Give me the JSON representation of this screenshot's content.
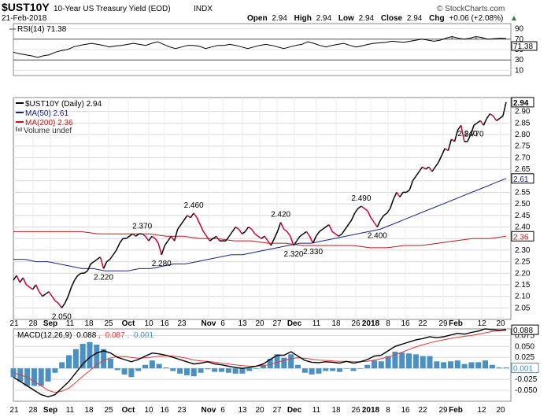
{
  "header": {
    "symbol": "$UST10Y",
    "name": "10-Year US Treasury Yield (EOD)",
    "exchange": "INDX",
    "date": "21-Feb-2018",
    "open_label": "Open",
    "open": "2.94",
    "high_label": "High",
    "high": "2.94",
    "low_label": "Low",
    "low": "2.94",
    "close_label": "Close",
    "close": "2.94",
    "chg_label": "Chg",
    "chg": "+0.06 (+2.08%)",
    "brand": "© StockCharts.com",
    "trend_marker": "▲"
  },
  "colors": {
    "price": "#000000",
    "ma50": "#1a237e",
    "ma200": "#b71c1c",
    "rise": "#cc0033",
    "hist": "#4a90c2",
    "rsi_fill": "#4a7a4a",
    "macd_signal": "#e53935",
    "grid": "#d8d8d8"
  },
  "chart_data": [
    {
      "type": "line",
      "panel": "rsi",
      "legend": "RSI(14) 71.38",
      "current": "71.38",
      "y_ticks": [
        "90",
        "70",
        "50",
        "30",
        "10"
      ],
      "ylim": [
        0,
        100
      ],
      "reference_lines": [
        70,
        30
      ],
      "values": [
        45,
        42,
        40,
        38,
        35,
        38,
        40,
        45,
        48,
        50,
        55,
        58,
        60,
        62,
        60,
        58,
        55,
        57,
        58,
        60,
        62,
        60,
        58,
        62,
        65,
        60,
        55,
        52,
        55,
        58,
        58,
        56,
        52,
        55,
        58,
        58,
        60,
        58,
        55,
        52,
        55,
        58,
        60,
        58,
        55,
        52,
        55,
        58,
        60,
        65,
        62,
        58,
        55,
        58,
        60,
        62,
        58,
        55,
        57,
        60,
        62,
        63,
        64,
        66,
        65,
        64,
        66,
        68,
        70,
        68,
        66,
        68,
        72,
        75,
        72,
        70,
        72,
        75,
        73,
        70,
        71,
        72,
        71.38
      ]
    },
    {
      "type": "line",
      "panel": "price",
      "title": "$UST10Y (Daily) 2.94",
      "legend": [
        "$UST10Y (Daily) 2.94",
        "MA(50) 2.61",
        "MA(200) 2.36",
        "Volume undef"
      ],
      "ylim": [
        2.0,
        2.96
      ],
      "y_ticks": [
        "2.90",
        "2.85",
        "2.80",
        "2.75",
        "2.70",
        "2.65",
        "2.60",
        "2.55",
        "2.50",
        "2.45",
        "2.40",
        "2.35",
        "2.30",
        "2.25",
        "2.20",
        "2.15",
        "2.10",
        "2.05"
      ],
      "last_labels": {
        "price": "2.94",
        "ma50": "2.61",
        "ma200": "2.36"
      },
      "x_ticks": [
        "21",
        "28",
        "Sep",
        "11",
        "18",
        "25",
        "Oct",
        "10",
        "16",
        "23",
        "Nov",
        "6",
        "13",
        "20",
        "27",
        "Dec",
        "11",
        "18",
        "26",
        "2018",
        "8",
        "16",
        "22",
        "29",
        "Feb",
        "12",
        "20"
      ],
      "annotations": [
        {
          "value": "2.050",
          "i": 15
        },
        {
          "value": "2.220",
          "i": 28
        },
        {
          "value": "2.370",
          "i": 40
        },
        {
          "value": "2.280",
          "i": 46
        },
        {
          "value": "2.460",
          "i": 56
        },
        {
          "value": "2.420",
          "i": 83
        },
        {
          "value": "2.320",
          "i": 87
        },
        {
          "value": "2.330",
          "i": 93
        },
        {
          "value": "2.490",
          "i": 108
        },
        {
          "value": "2.400",
          "i": 113
        },
        {
          "value": "2.840",
          "i": 141
        },
        {
          "value": "2.770",
          "i": 143
        }
      ],
      "series": [
        {
          "name": "$UST10Y",
          "values": [
            2.17,
            2.19,
            2.16,
            2.18,
            2.15,
            2.14,
            2.13,
            2.15,
            2.12,
            2.1,
            2.11,
            2.12,
            2.1,
            2.08,
            2.07,
            2.05,
            2.07,
            2.1,
            2.14,
            2.17,
            2.19,
            2.2,
            2.2,
            2.21,
            2.24,
            2.25,
            2.26,
            2.27,
            2.22,
            2.25,
            2.26,
            2.28,
            2.3,
            2.33,
            2.35,
            2.35,
            2.36,
            2.37,
            2.36,
            2.37,
            2.37,
            2.36,
            2.34,
            2.36,
            2.35,
            2.33,
            2.28,
            2.32,
            2.34,
            2.36,
            2.34,
            2.39,
            2.41,
            2.43,
            2.45,
            2.44,
            2.46,
            2.44,
            2.41,
            2.38,
            2.36,
            2.34,
            2.35,
            2.36,
            2.34,
            2.34,
            2.34,
            2.36,
            2.38,
            2.4,
            2.39,
            2.37,
            2.38,
            2.4,
            2.39,
            2.37,
            2.36,
            2.35,
            2.36,
            2.34,
            2.32,
            2.35,
            2.38,
            2.42,
            2.39,
            2.38,
            2.36,
            2.32,
            2.34,
            2.36,
            2.37,
            2.38,
            2.36,
            2.33,
            2.36,
            2.38,
            2.39,
            2.4,
            2.41,
            2.38,
            2.37,
            2.36,
            2.37,
            2.39,
            2.41,
            2.43,
            2.46,
            2.48,
            2.49,
            2.48,
            2.47,
            2.44,
            2.42,
            2.4,
            2.43,
            2.45,
            2.46,
            2.48,
            2.52,
            2.55,
            2.53,
            2.55,
            2.55,
            2.56,
            2.6,
            2.62,
            2.64,
            2.66,
            2.65,
            2.66,
            2.64,
            2.66,
            2.68,
            2.71,
            2.74,
            2.73,
            2.78,
            2.77,
            2.82,
            2.84,
            2.77,
            2.77,
            2.8,
            2.84,
            2.85,
            2.86,
            2.84,
            2.87,
            2.89,
            2.88,
            2.86,
            2.87,
            2.88,
            2.94
          ]
        },
        {
          "name": "MA(50)",
          "values": [
            2.26,
            2.26,
            2.25,
            2.25,
            2.24,
            2.23,
            2.22,
            2.22,
            2.21,
            2.21,
            2.21,
            2.22,
            2.22,
            2.23,
            2.24,
            2.24,
            2.25,
            2.26,
            2.27,
            2.28,
            2.28,
            2.29,
            2.3,
            2.31,
            2.32,
            2.33,
            2.33,
            2.34,
            2.35,
            2.36,
            2.37,
            2.38,
            2.39,
            2.41,
            2.43,
            2.45,
            2.47,
            2.49,
            2.51,
            2.53,
            2.55,
            2.57,
            2.59,
            2.61
          ]
        },
        {
          "name": "MA(200)",
          "values": [
            2.38,
            2.38,
            2.38,
            2.38,
            2.38,
            2.37,
            2.37,
            2.37,
            2.37,
            2.36,
            2.36,
            2.35,
            2.35,
            2.34,
            2.34,
            2.33,
            2.33,
            2.32,
            2.32,
            2.32,
            2.32,
            2.31,
            2.31,
            2.32,
            2.32,
            2.33,
            2.34,
            2.35,
            2.35,
            2.36
          ]
        }
      ]
    },
    {
      "type": "line",
      "panel": "macd",
      "legend": {
        "label": "MACD(12,26,9)",
        "macd": "0.088",
        "signal": "0.087",
        "hist": "0.001"
      },
      "last_labels": {
        "macd": "0.088",
        "hist": "0.001"
      },
      "y_ticks": [
        "0.075",
        "0.050",
        "0.025",
        "0.000",
        "-0.025",
        "-0.050"
      ],
      "ylim": [
        -0.075,
        0.09
      ],
      "series": [
        {
          "name": "MACD",
          "values": [
            -0.02,
            -0.03,
            -0.04,
            -0.05,
            -0.06,
            -0.065,
            -0.06,
            -0.045,
            -0.03,
            -0.01,
            0.01,
            0.025,
            0.035,
            0.04,
            0.035,
            0.025,
            0.02,
            0.015,
            0.02,
            0.028,
            0.035,
            0.033,
            0.03,
            0.025,
            0.02,
            0.015,
            0.01,
            0.012,
            0.015,
            0.01,
            0.008,
            0.005,
            0.002,
            0.0,
            0.002,
            0.005,
            0.01,
            0.02,
            0.03,
            0.03,
            0.038,
            0.028,
            0.018,
            0.014,
            0.013,
            0.015,
            0.014,
            0.012,
            0.016,
            0.012,
            0.015,
            0.02,
            0.028,
            0.03,
            0.04,
            0.05,
            0.055,
            0.06,
            0.065,
            0.068,
            0.072,
            0.07,
            0.072,
            0.076,
            0.08,
            0.078,
            0.082,
            0.085,
            0.09,
            0.088,
            0.087,
            0.088
          ]
        },
        {
          "name": "Signal",
          "values": [
            -0.01,
            -0.015,
            -0.02,
            -0.03,
            -0.04,
            -0.05,
            -0.055,
            -0.052,
            -0.045,
            -0.032,
            -0.018,
            -0.005,
            0.008,
            0.018,
            0.024,
            0.027,
            0.027,
            0.025,
            0.023,
            0.024,
            0.026,
            0.028,
            0.029,
            0.028,
            0.026,
            0.023,
            0.019,
            0.017,
            0.016,
            0.014,
            0.012,
            0.01,
            0.008,
            0.006,
            0.005,
            0.005,
            0.006,
            0.009,
            0.014,
            0.018,
            0.022,
            0.024,
            0.023,
            0.021,
            0.019,
            0.018,
            0.017,
            0.016,
            0.016,
            0.015,
            0.015,
            0.016,
            0.019,
            0.022,
            0.026,
            0.031,
            0.037,
            0.043,
            0.049,
            0.054,
            0.058,
            0.062,
            0.065,
            0.068,
            0.071,
            0.073,
            0.075,
            0.078,
            0.081,
            0.084,
            0.086,
            0.087
          ]
        }
      ]
    }
  ]
}
